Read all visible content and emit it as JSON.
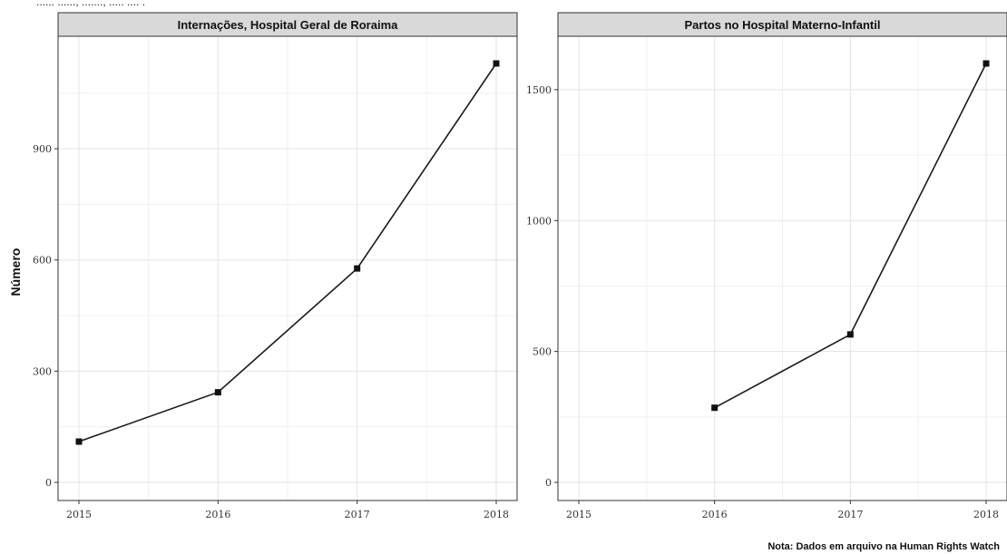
{
  "header": {
    "caption": "...... ......, ......., ..... .... ."
  },
  "ylabel": "Número",
  "note": "Nota: Dados em arquivo na Human Rights Watch",
  "chart_data": [
    {
      "type": "line",
      "title": "Internações, Hospital Geral de Roraima",
      "xlabel": "",
      "ylabel": "Número",
      "x": [
        2015,
        2016,
        2017,
        2018
      ],
      "series": [
        {
          "values": [
            110,
            243,
            577,
            1130
          ]
        }
      ],
      "xlim": [
        2015,
        2018
      ],
      "ylim": [
        0,
        1130
      ],
      "yticks": [
        0,
        300,
        600,
        900
      ],
      "xticks": [
        2015,
        2016,
        2017,
        2018
      ],
      "grid": true,
      "legend": "none"
    },
    {
      "type": "line",
      "title": "Partos no Hospital Materno-Infantil",
      "xlabel": "",
      "ylabel": "",
      "x": [
        2016,
        2017,
        2018
      ],
      "series": [
        {
          "values": [
            285,
            565,
            1600
          ]
        }
      ],
      "xlim": [
        2015,
        2018
      ],
      "ylim": [
        0,
        1600
      ],
      "yticks": [
        0,
        500,
        1000,
        1500
      ],
      "xticks": [
        2015,
        2016,
        2017,
        2018
      ],
      "grid": true,
      "legend": "none"
    }
  ]
}
